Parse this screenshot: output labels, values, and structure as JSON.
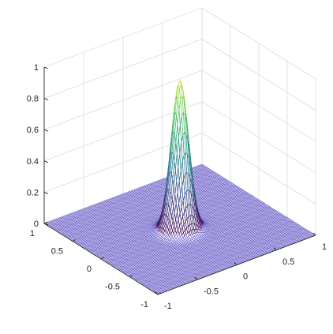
{
  "chart_data": {
    "type": "surface",
    "render": "mesh",
    "function": "exp(-(x^2 + y^2) / (2 * 0.09^2))",
    "x_range": [
      -1,
      1
    ],
    "y_range": [
      -1,
      1
    ],
    "z_range": [
      0,
      1
    ],
    "peak": {
      "x": 0,
      "y": 0,
      "z": 0.95
    },
    "grid": true,
    "box": false,
    "colormap": [
      "#440154",
      "#3b528b",
      "#21918c",
      "#5ec962",
      "#fde725"
    ],
    "floor_color": "#6b5fc8",
    "z_ticks": [
      {
        "value": 0,
        "label": "0"
      },
      {
        "value": 0.2,
        "label": "0.2"
      },
      {
        "value": 0.4,
        "label": "0.4"
      },
      {
        "value": 0.6,
        "label": "0.6"
      },
      {
        "value": 0.8,
        "label": "0.8"
      },
      {
        "value": 1,
        "label": "1"
      }
    ],
    "x_ticks": [
      {
        "value": -1,
        "label": "-1"
      },
      {
        "value": -0.5,
        "label": "-0.5"
      },
      {
        "value": 0,
        "label": "0"
      },
      {
        "value": 0.5,
        "label": "0.5"
      },
      {
        "value": 1,
        "label": "1"
      }
    ],
    "y_ticks": [
      {
        "value": -1,
        "label": "-1"
      },
      {
        "value": -0.5,
        "label": "-0.5"
      },
      {
        "value": 0,
        "label": "0"
      },
      {
        "value": 0.5,
        "label": "0.5"
      },
      {
        "value": 1,
        "label": "1"
      }
    ]
  }
}
